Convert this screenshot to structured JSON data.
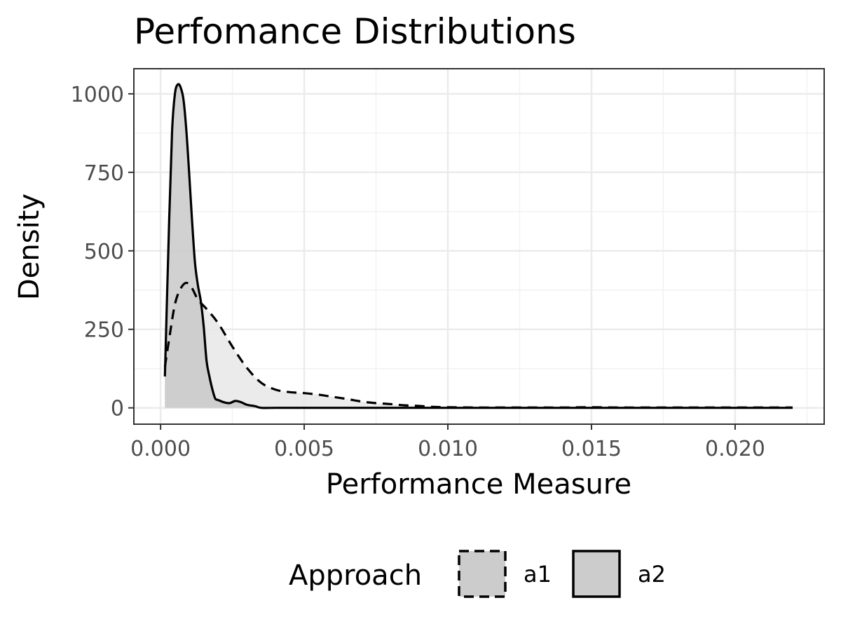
{
  "chart_data": {
    "type": "area",
    "title": "Perfomance Distributions",
    "xlabel": "Performance Measure",
    "ylabel": "Density",
    "xlim": [
      -0.00093,
      0.0231
    ],
    "ylim": [
      -52,
      1080
    ],
    "x_ticks": [
      0.0,
      0.005,
      0.01,
      0.015,
      0.02
    ],
    "x_tick_labels": [
      "0.000",
      "0.005",
      "0.010",
      "0.015",
      "0.020"
    ],
    "y_ticks": [
      0,
      250,
      500,
      750,
      1000
    ],
    "y_tick_labels": [
      "0",
      "250",
      "500",
      "750",
      "1000"
    ],
    "grid": true,
    "legend": {
      "title": "Approach",
      "position": "bottom",
      "entries": [
        "a1",
        "a2"
      ]
    },
    "series": [
      {
        "name": "a1",
        "line_style": "dashed",
        "fill_color": "#e8e8e8",
        "x": [
          0.00015,
          0.0003,
          0.0005,
          0.0007,
          0.0009,
          0.0011,
          0.0013,
          0.0016,
          0.002,
          0.0025,
          0.003,
          0.0035,
          0.004,
          0.0045,
          0.005,
          0.0055,
          0.006,
          0.0065,
          0.007,
          0.0075,
          0.008,
          0.0085,
          0.009,
          0.0095,
          0.01,
          0.011,
          0.012,
          0.013,
          0.014,
          0.015,
          0.016,
          0.017,
          0.018,
          0.019,
          0.02,
          0.021,
          0.022
        ],
        "y": [
          130,
          220,
          330,
          380,
          398,
          380,
          345,
          315,
          270,
          195,
          128,
          80,
          58,
          50,
          47,
          42,
          35,
          28,
          20,
          15,
          12,
          8,
          6,
          3,
          2,
          1,
          1,
          1,
          1,
          2,
          1,
          1,
          1,
          1,
          1,
          1,
          1
        ]
      },
      {
        "name": "a2",
        "line_style": "solid",
        "fill_color": "#c9c9c9",
        "x": [
          0.00015,
          0.0003,
          0.0004,
          0.0005,
          0.0006,
          0.0007,
          0.0008,
          0.0009,
          0.001,
          0.0011,
          0.0012,
          0.0013,
          0.0014,
          0.0015,
          0.0016,
          0.0017,
          0.0018,
          0.0019,
          0.002,
          0.0022,
          0.0024,
          0.0026,
          0.0028,
          0.003,
          0.0033,
          0.0035,
          0.004,
          0.005,
          0.007,
          0.01,
          0.015,
          0.022
        ],
        "y": [
          100,
          600,
          880,
          1000,
          1030,
          1020,
          980,
          880,
          740,
          590,
          460,
          390,
          340,
          260,
          150,
          100,
          60,
          30,
          25,
          18,
          15,
          22,
          18,
          10,
          5,
          0,
          0,
          0,
          0,
          0,
          0,
          0
        ]
      }
    ]
  }
}
